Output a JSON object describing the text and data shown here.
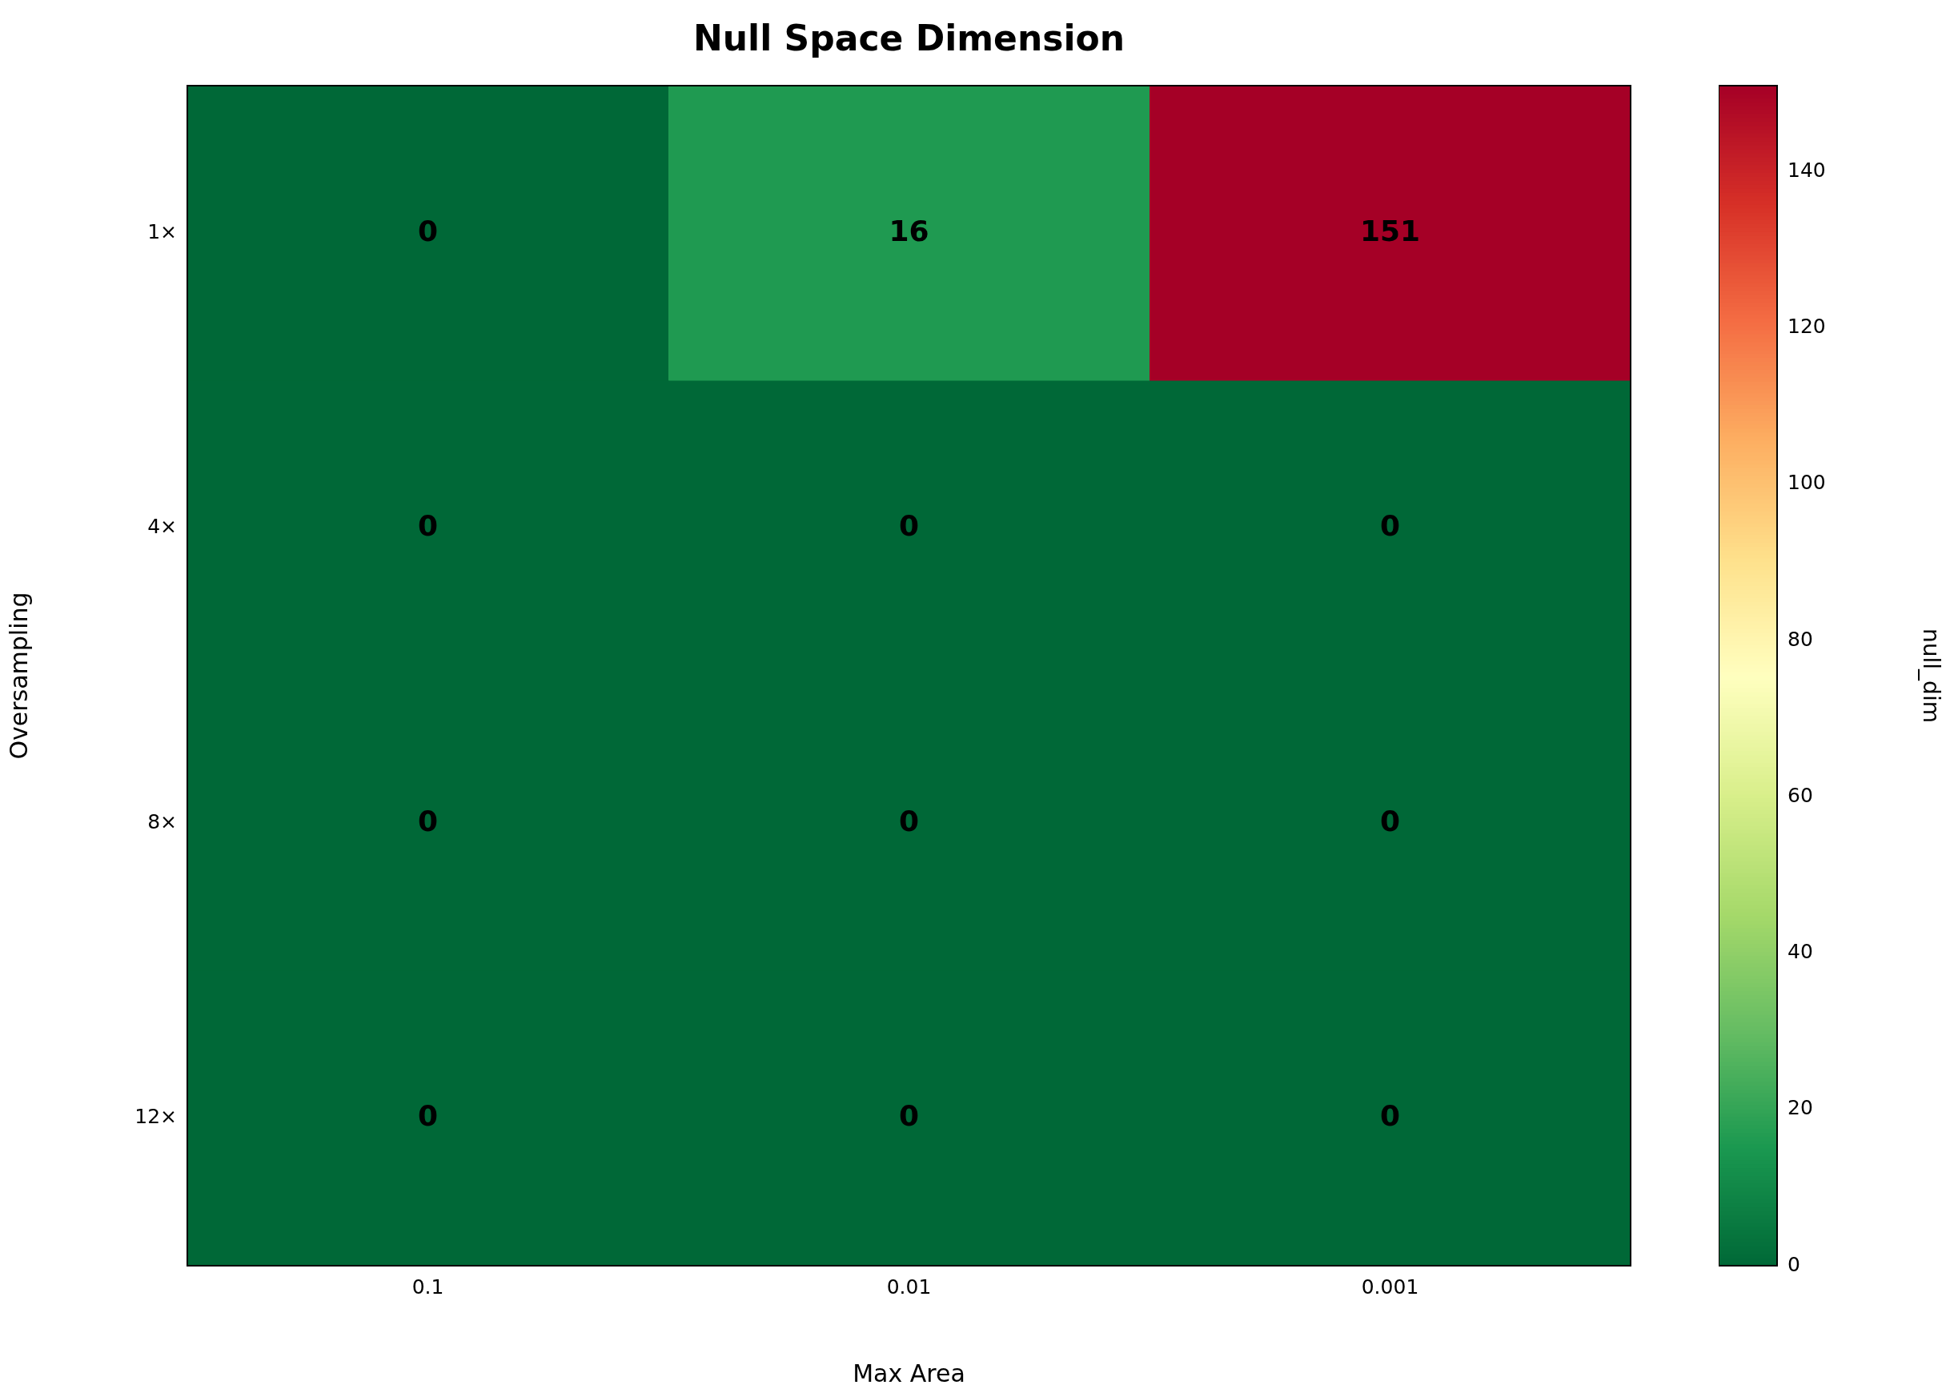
{
  "chart_data": {
    "type": "heatmap",
    "title": "Null Space Dimension",
    "xlabel": "Max Area",
    "ylabel": "Oversampling",
    "clabel": "null_dim",
    "categories": [
      "0.1",
      "0.01",
      "0.001"
    ],
    "y_categories": [
      "1×",
      "4×",
      "8×",
      "12×"
    ],
    "cells": [
      [
        0,
        16,
        151
      ],
      [
        0,
        0,
        0
      ],
      [
        0,
        0,
        0
      ],
      [
        0,
        0,
        0
      ]
    ],
    "clim": [
      0,
      151
    ],
    "cticks": [
      0,
      20,
      40,
      60,
      80,
      100,
      120,
      140
    ],
    "data_labels": true
  }
}
